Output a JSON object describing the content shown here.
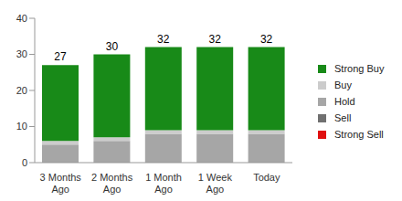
{
  "chart_data": {
    "type": "bar",
    "stacked": true,
    "categories": [
      "3 Months Ago",
      "2 Months Ago",
      "1 Month Ago",
      "1 Week Ago",
      "Today"
    ],
    "totals": [
      27,
      30,
      32,
      32,
      32
    ],
    "series": [
      {
        "name": "Strong Buy",
        "color": "#188a18",
        "values": [
          21,
          23,
          23,
          23,
          23
        ]
      },
      {
        "name": "Buy",
        "color": "#cccccc",
        "values": [
          1,
          1,
          1,
          1,
          1
        ]
      },
      {
        "name": "Hold",
        "color": "#a6a6a6",
        "values": [
          5,
          6,
          8,
          8,
          8
        ]
      },
      {
        "name": "Sell",
        "color": "#707070",
        "values": [
          0,
          0,
          0,
          0,
          0
        ]
      },
      {
        "name": "Strong Sell",
        "color": "#e01010",
        "values": [
          0,
          0,
          0,
          0,
          0
        ]
      }
    ],
    "ylim": [
      0,
      40
    ],
    "yticks": [
      0,
      10,
      20,
      30,
      40
    ],
    "grid": false,
    "legend": "right"
  }
}
